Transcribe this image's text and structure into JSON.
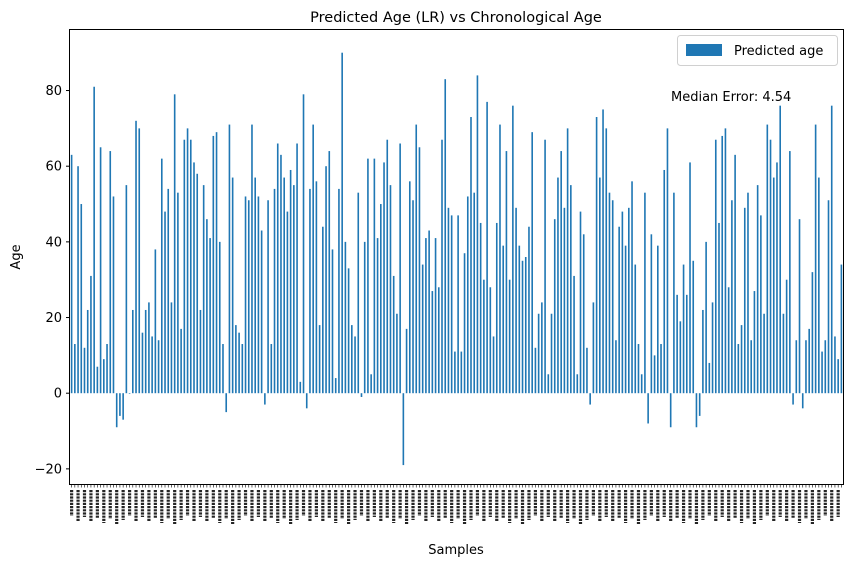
{
  "chart_data": {
    "type": "bar",
    "title": "Predicted Age (LR) vs Chronological Age",
    "xlabel": "Samples",
    "ylabel": "Age",
    "ylim": [
      -24,
      96
    ],
    "yticks": [
      -20,
      0,
      20,
      40,
      60,
      80
    ],
    "grid": false,
    "legend_position": "top-right",
    "annotation": "Median Error: 4.54",
    "x_tick_labels_legible": false,
    "series": [
      {
        "name": "Predicted age",
        "color": "#1f77b4",
        "values": [
          63,
          13,
          60,
          50,
          12,
          22,
          31,
          81,
          7,
          65,
          9,
          13,
          64,
          52,
          -9,
          -6,
          -7,
          55,
          0,
          22,
          72,
          70,
          16,
          22,
          24,
          15,
          38,
          14,
          62,
          48,
          54,
          24,
          79,
          53,
          17,
          67,
          70,
          67,
          61,
          58,
          22,
          55,
          46,
          41,
          68,
          69,
          40,
          13,
          -5,
          71,
          57,
          18,
          16,
          13,
          52,
          51,
          71,
          57,
          52,
          43,
          -3,
          51,
          13,
          54,
          66,
          63,
          57,
          48,
          59,
          55,
          66,
          3,
          79,
          -4,
          54,
          71,
          56,
          18,
          44,
          60,
          64,
          38,
          4,
          54,
          90,
          40,
          33,
          18,
          15,
          53,
          -1,
          40,
          62,
          5,
          62,
          41,
          50,
          61,
          67,
          55,
          31,
          21,
          66,
          -19,
          17,
          56,
          51,
          71,
          65,
          34,
          41,
          43,
          27,
          41,
          28,
          67,
          83,
          49,
          47,
          11,
          47,
          11,
          37,
          52,
          73,
          53,
          84,
          45,
          30,
          77,
          28,
          15,
          45,
          71,
          39,
          64,
          30,
          76,
          49,
          39,
          35,
          36,
          44,
          69,
          12,
          21,
          24,
          67,
          5,
          21,
          46,
          57,
          64,
          49,
          70,
          55,
          31,
          5,
          48,
          42,
          12,
          -3,
          24,
          73,
          57,
          75,
          70,
          53,
          51,
          14,
          44,
          48,
          39,
          49,
          56,
          34,
          13,
          5,
          53,
          -8,
          42,
          10,
          39,
          13,
          59,
          70,
          -9,
          53,
          26,
          19,
          34,
          26,
          61,
          35,
          -9,
          -6,
          22,
          40,
          8,
          24,
          67,
          45,
          68,
          70,
          28,
          51,
          63,
          13,
          18,
          49,
          53,
          14,
          27,
          55,
          47,
          21,
          71,
          67,
          57,
          61,
          76,
          21,
          30,
          64,
          -3,
          14,
          46,
          -4,
          14,
          17,
          32,
          71,
          57,
          11,
          14,
          51,
          76,
          15,
          9,
          34
        ]
      }
    ]
  },
  "legend": {
    "label": "Predicted age",
    "color": "#1f77b4"
  }
}
